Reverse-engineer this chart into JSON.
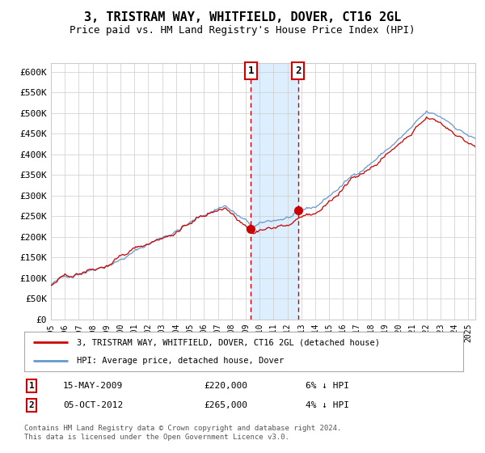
{
  "title": "3, TRISTRAM WAY, WHITFIELD, DOVER, CT16 2GL",
  "subtitle": "Price paid vs. HM Land Registry's House Price Index (HPI)",
  "title_fontsize": 11,
  "subtitle_fontsize": 9,
  "ylabel_ticks": [
    "£0",
    "£50K",
    "£100K",
    "£150K",
    "£200K",
    "£250K",
    "£300K",
    "£350K",
    "£400K",
    "£450K",
    "£500K",
    "£550K",
    "£600K"
  ],
  "ytick_values": [
    0,
    50000,
    100000,
    150000,
    200000,
    250000,
    300000,
    350000,
    400000,
    450000,
    500000,
    550000,
    600000
  ],
  "ylim": [
    0,
    620000
  ],
  "xlim_start": 1995.0,
  "xlim_end": 2025.5,
  "sale1_date": 2009.37,
  "sale1_price": 220000,
  "sale2_date": 2012.75,
  "sale2_price": 265000,
  "sale1_label": "1",
  "sale2_label": "2",
  "line_color_red": "#cc0000",
  "line_color_blue": "#6699cc",
  "shade_color": "#ddeeff",
  "dashed_color": "#cc0000",
  "grid_color": "#cccccc",
  "bg_color": "#ffffff",
  "legend_line1": "3, TRISTRAM WAY, WHITFIELD, DOVER, CT16 2GL (detached house)",
  "legend_line2": "HPI: Average price, detached house, Dover",
  "table_row1": [
    "1",
    "15-MAY-2009",
    "£220,000",
    "6% ↓ HPI"
  ],
  "table_row2": [
    "2",
    "05-OCT-2012",
    "£265,000",
    "4% ↓ HPI"
  ],
  "footer": "Contains HM Land Registry data © Crown copyright and database right 2024.\nThis data is licensed under the Open Government Licence v3.0.",
  "xtick_years": [
    1995,
    1996,
    1997,
    1998,
    1999,
    2000,
    2001,
    2002,
    2003,
    2004,
    2005,
    2006,
    2007,
    2008,
    2009,
    2010,
    2011,
    2012,
    2013,
    2014,
    2015,
    2016,
    2017,
    2018,
    2019,
    2020,
    2021,
    2022,
    2023,
    2024,
    2025
  ],
  "points_per_year": 12,
  "start_year": 1995,
  "end_year": 2025
}
